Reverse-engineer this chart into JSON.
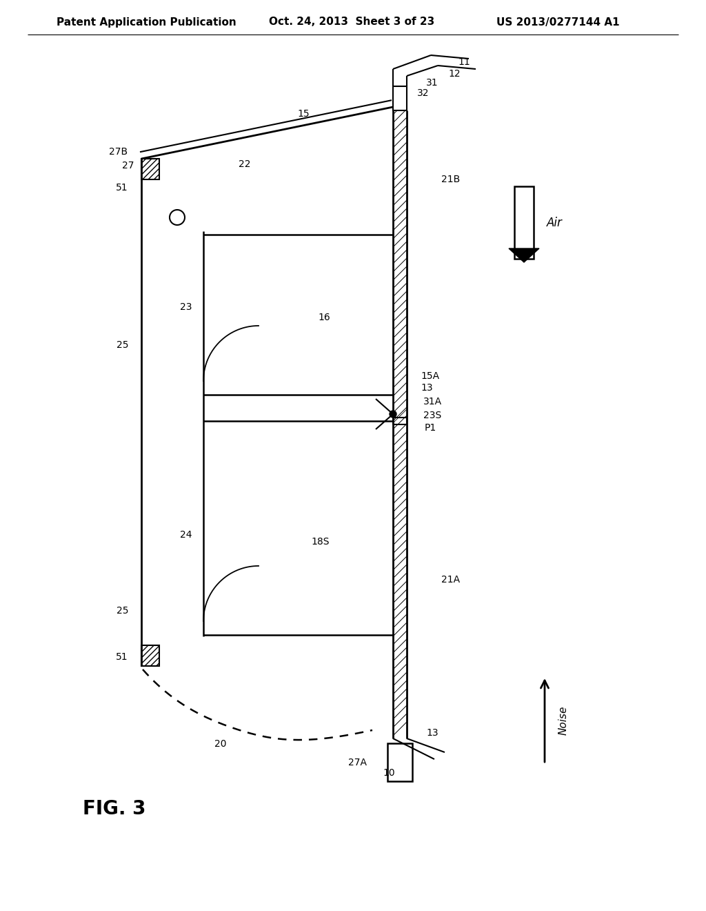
{
  "header_left": "Patent Application Publication",
  "header_mid": "Oct. 24, 2013  Sheet 3 of 23",
  "header_right": "US 2013/0277144 A1",
  "fig_label": "FIG. 3",
  "bg_color": "#ffffff"
}
